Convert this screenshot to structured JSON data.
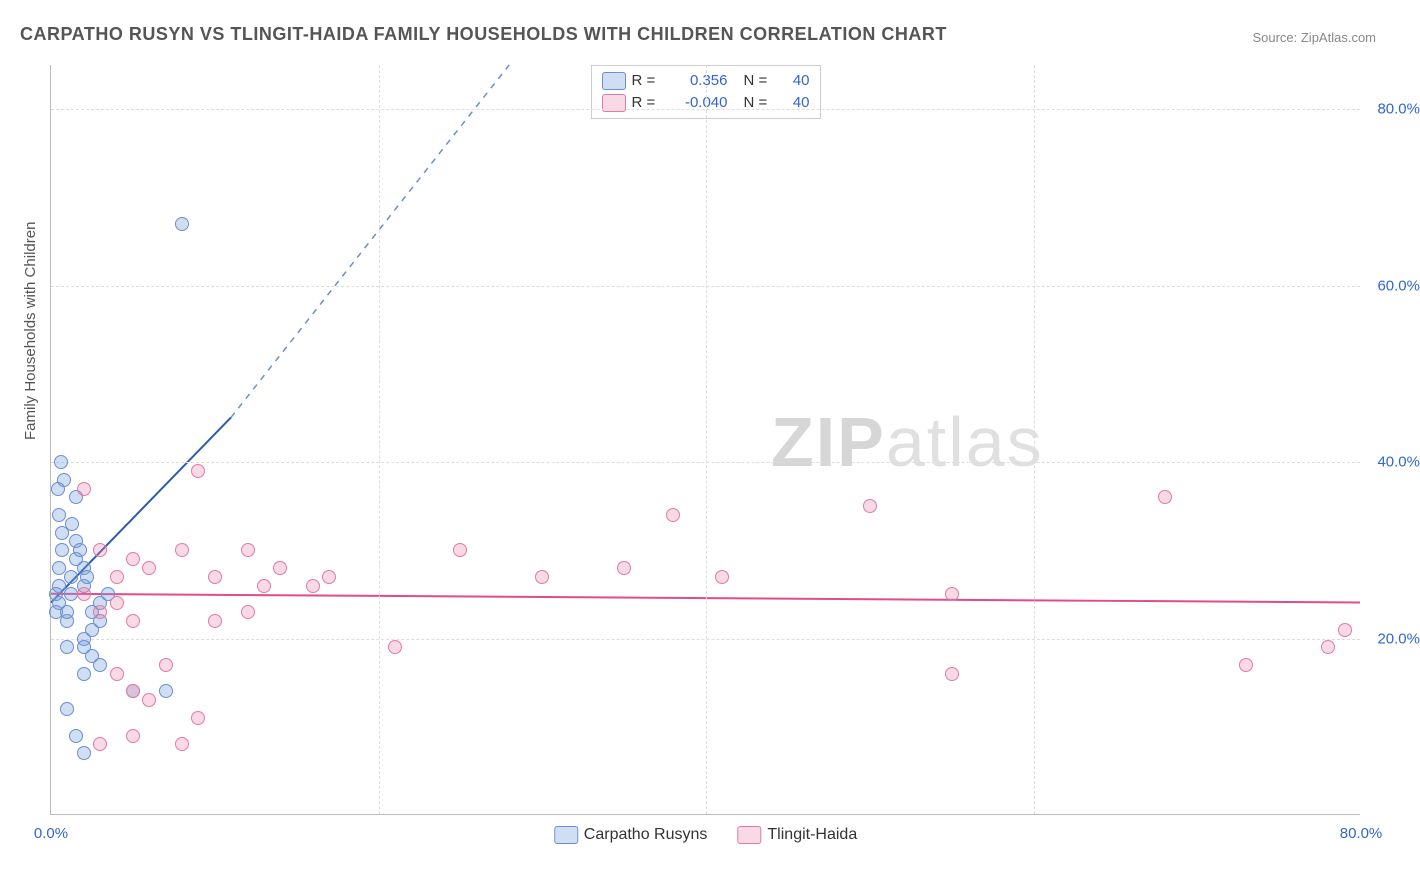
{
  "title": "CARPATHO RUSYN VS TLINGIT-HAIDA FAMILY HOUSEHOLDS WITH CHILDREN CORRELATION CHART",
  "source": "Source: ZipAtlas.com",
  "ylabel": "Family Households with Children",
  "watermark_a": "ZIP",
  "watermark_b": "atlas",
  "chart": {
    "type": "scatter",
    "xlim": [
      0,
      80
    ],
    "ylim": [
      0,
      85
    ],
    "xticks": [
      {
        "v": 0,
        "label": "0.0%"
      },
      {
        "v": 80,
        "label": "80.0%"
      }
    ],
    "yticks": [
      {
        "v": 20,
        "label": "20.0%"
      },
      {
        "v": 40,
        "label": "40.0%"
      },
      {
        "v": 60,
        "label": "60.0%"
      },
      {
        "v": 80,
        "label": "80.0%"
      }
    ],
    "grid_y": [
      20,
      40,
      60,
      80
    ],
    "grid_x": [
      20,
      40,
      60
    ],
    "background_color": "#ffffff",
    "grid_color": "#dddddd",
    "axis_color": "#bbbbbb",
    "tick_color": "#3366cc",
    "marker_radius": 7,
    "series": [
      {
        "name": "Carpatho Rusyns",
        "fill": "rgba(120,160,220,0.35)",
        "stroke": "#6a8fd0",
        "trend": {
          "x1": 0,
          "y1": 24,
          "x2": 11,
          "y2": 45,
          "solid_color": "#2a5db0",
          "solid_width": 2,
          "dash_x2": 28,
          "dash_y2": 85,
          "dash_color": "#6a8fd0",
          "dash_pattern": "6,6"
        },
        "points": [
          [
            0.5,
            24
          ],
          [
            0.5,
            26
          ],
          [
            0.5,
            28
          ],
          [
            0.7,
            30
          ],
          [
            0.7,
            32
          ],
          [
            0.5,
            34
          ],
          [
            0.4,
            37
          ],
          [
            0.6,
            40
          ],
          [
            1,
            22
          ],
          [
            1,
            23
          ],
          [
            1.2,
            25
          ],
          [
            1.2,
            27
          ],
          [
            1.5,
            29
          ],
          [
            1.5,
            31
          ],
          [
            2,
            26
          ],
          [
            2,
            28
          ],
          [
            2,
            20
          ],
          [
            2.5,
            21
          ],
          [
            2.5,
            23
          ],
          [
            3,
            24
          ],
          [
            3,
            22
          ],
          [
            1,
            19
          ],
          [
            2,
            19
          ],
          [
            2.5,
            18
          ],
          [
            1,
            12
          ],
          [
            5,
            14
          ],
          [
            7,
            14
          ],
          [
            2,
            7
          ],
          [
            1.5,
            9
          ],
          [
            2,
            16
          ],
          [
            3,
            17
          ],
          [
            3.5,
            25
          ],
          [
            1.5,
            36
          ],
          [
            0.8,
            38
          ],
          [
            1.8,
            30
          ],
          [
            0.3,
            23
          ],
          [
            0.3,
            25
          ],
          [
            2.2,
            27
          ],
          [
            8,
            67
          ],
          [
            1.3,
            33
          ]
        ]
      },
      {
        "name": "Tlingit-Haida",
        "fill": "rgba(235,130,170,0.30)",
        "stroke": "#e27aa5",
        "trend": {
          "x1": 0,
          "y1": 25,
          "x2": 80,
          "y2": 24,
          "solid_color": "#e04b8a",
          "solid_width": 2
        },
        "points": [
          [
            2,
            37
          ],
          [
            9,
            39
          ],
          [
            5,
            29
          ],
          [
            6,
            28
          ],
          [
            8,
            30
          ],
          [
            10,
            27
          ],
          [
            12,
            30
          ],
          [
            13,
            26
          ],
          [
            14,
            28
          ],
          [
            16,
            26
          ],
          [
            12,
            23
          ],
          [
            10,
            22
          ],
          [
            5,
            22
          ],
          [
            7,
            17
          ],
          [
            9,
            11
          ],
          [
            5,
            9
          ],
          [
            8,
            8
          ],
          [
            3,
            8
          ],
          [
            4,
            16
          ],
          [
            5,
            14
          ],
          [
            6,
            13
          ],
          [
            21,
            19
          ],
          [
            17,
            27
          ],
          [
            25,
            30
          ],
          [
            38,
            34
          ],
          [
            41,
            27
          ],
          [
            50,
            35
          ],
          [
            55,
            16
          ],
          [
            55,
            25
          ],
          [
            68,
            36
          ],
          [
            73,
            17
          ],
          [
            78,
            19
          ],
          [
            79,
            21
          ],
          [
            3,
            30
          ],
          [
            4,
            27
          ],
          [
            2,
            25
          ],
          [
            3,
            23
          ],
          [
            4,
            24
          ],
          [
            30,
            27
          ],
          [
            35,
            28
          ]
        ]
      }
    ]
  },
  "legend_top": {
    "rows": [
      {
        "r_label": "R =",
        "r_value": "0.356",
        "n_label": "N =",
        "n_value": "40"
      },
      {
        "r_label": "R =",
        "r_value": "-0.040",
        "n_label": "N =",
        "n_value": "40"
      }
    ]
  },
  "legend_bottom": {
    "items": [
      "Carpatho Rusyns",
      "Tlingit-Haida"
    ]
  }
}
